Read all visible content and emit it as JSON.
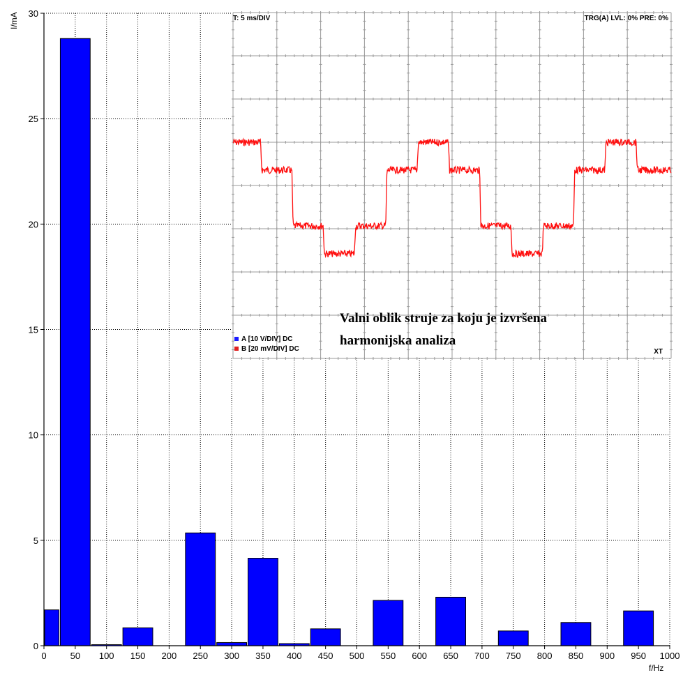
{
  "chart_data": [
    {
      "type": "bar",
      "ylabel": "I/mA",
      "xlabel": "f/Hz",
      "xlim": [
        0,
        1000
      ],
      "ylim": [
        0,
        30
      ],
      "x_ticks": [
        "0",
        "50",
        "100",
        "150",
        "200",
        "250",
        "300",
        "350",
        "400",
        "450",
        "500",
        "550",
        "600",
        "650",
        "700",
        "750",
        "800",
        "850",
        "900",
        "950",
        "1000"
      ],
      "y_ticks": [
        "0",
        "5",
        "10",
        "15",
        "20",
        "25",
        "30"
      ],
      "grid": true,
      "bar_width_hz": 50,
      "x": [
        0,
        50,
        100,
        150,
        200,
        250,
        300,
        350,
        400,
        450,
        500,
        550,
        600,
        650,
        700,
        750,
        800,
        850,
        900,
        950
      ],
      "values": [
        1.7,
        28.8,
        0.05,
        0.85,
        0,
        5.35,
        0.15,
        4.15,
        0.1,
        0.8,
        0,
        2.15,
        0,
        2.3,
        0,
        0.7,
        0,
        1.1,
        0,
        1.65
      ]
    },
    {
      "type": "line",
      "header_left": "T: 5 ms/DIV",
      "header_right": "TRG(A) LVL: 0% PRE: 0%",
      "mode": "XT",
      "legend": [
        {
          "label": "A [10 V/DIV] DC",
          "color": "#1a1aff"
        },
        {
          "label": "B [20 mV/DIV] DC",
          "color": "#e02020"
        }
      ],
      "series": [
        {
          "name": "B [20 mV/DIV] DC",
          "color": "#ff1010",
          "x": [
            0,
            4.4,
            4.6,
            9.4,
            9.6,
            14.4,
            14.6,
            19.4,
            19.6,
            24.4,
            24.6,
            29.4,
            29.6,
            34.4,
            34.6,
            39.4,
            39.6,
            44.4,
            44.6,
            49.4,
            49.6,
            54.4,
            54.6,
            59.4,
            59.6,
            64.4,
            64.6,
            70.0
          ],
          "values": [
            1.5,
            1.5,
            0.5,
            0.5,
            -1.5,
            -1.5,
            -2.5,
            -2.5,
            -1.5,
            -1.5,
            0.5,
            0.5,
            1.5,
            1.5,
            0.5,
            0.5,
            -1.5,
            -1.5,
            -2.5,
            -2.5,
            -1.5,
            -1.5,
            0.5,
            0.5,
            1.5,
            1.5,
            0.5,
            0.5
          ]
        }
      ]
    }
  ],
  "caption": {
    "line1": "Valni oblik struje za koju je izvršena",
    "line2": "harmonijska analiza"
  },
  "colors": {
    "bar_fill": "#0000ff",
    "trace": "#ff1010"
  }
}
